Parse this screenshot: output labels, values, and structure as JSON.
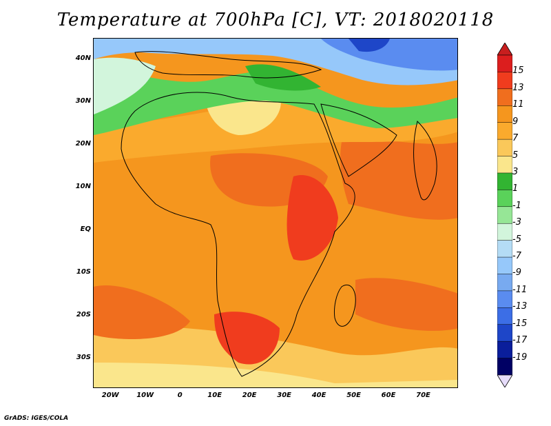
{
  "title": "Temperature at 700hPa [C], VT: 2018020118",
  "footer": "GrADS: IGES/COLA",
  "map": {
    "projection": "lat-lon",
    "lon_range": [
      -25,
      80
    ],
    "lat_range": [
      -37,
      45
    ],
    "variable": "Temperature at 700hPa",
    "units": "C",
    "valid_time": "2018020118"
  },
  "axes": {
    "y_ticks": [
      "40N",
      "30N",
      "20N",
      "10N",
      "EQ",
      "10S",
      "20S",
      "30S"
    ],
    "y_values": [
      40,
      30,
      20,
      10,
      0,
      -10,
      -20,
      -30
    ],
    "x_ticks": [
      "20W",
      "10W",
      "0",
      "10E",
      "20E",
      "30E",
      "40E",
      "50E",
      "60E",
      "70E"
    ],
    "x_values": [
      -20,
      -10,
      0,
      10,
      20,
      30,
      40,
      50,
      60,
      70
    ]
  },
  "colorbar": {
    "labels": [
      "15",
      "13",
      "11",
      "9",
      "7",
      "5",
      "3",
      "1",
      "-1",
      "-3",
      "-5",
      "-7",
      "-9",
      "-11",
      "-13",
      "-15",
      "-17",
      "-19"
    ],
    "colors": [
      "#dc1e1e",
      "#f03c1e",
      "#f06e1e",
      "#f5961e",
      "#faaa2d",
      "#fac85a",
      "#fae68c",
      "#32b432",
      "#5ad25a",
      "#96e696",
      "#d2f5dc",
      "#b4dcf5",
      "#96c8fa",
      "#78aaf0",
      "#5a8cf0",
      "#3c6ee6",
      "#1e46c8",
      "#0a1e9b",
      "#000064"
    ],
    "overflow_colors": {
      "max": "#c81e1e",
      "min": "#e6dcfa"
    }
  },
  "legend_entries": [
    {
      "value": "15",
      "color": "#dc1e1e"
    },
    {
      "value": "-19",
      "color": "#000064"
    }
  ]
}
